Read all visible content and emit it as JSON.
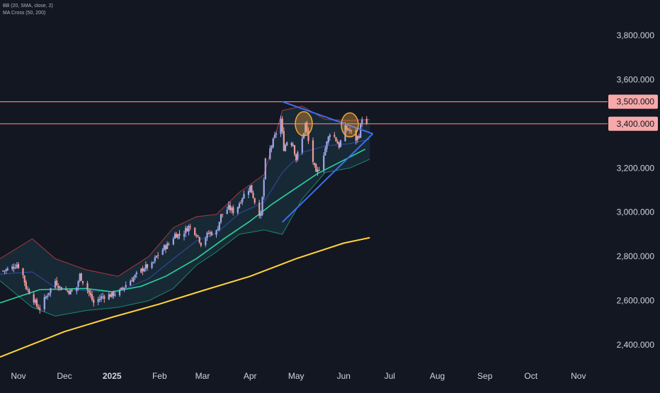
{
  "indicators": {
    "bb_label": "BB (20, SMA, close, 2)",
    "ma_cross_label": "MA Cross (50, 200)"
  },
  "colors": {
    "background": "#131722",
    "candle_up": "#9fa8ea",
    "candle_down": "#ef9a9a",
    "bb_upper": "#a43a3a",
    "bb_lower": "#17896a",
    "bb_basis": "#2c4fa8",
    "bb_fill": "#1a2d3a",
    "ma_50": "#29d39a",
    "ma_200": "#ffd43b",
    "horizontal_level": "#f77c80",
    "trendline": "#3d6df0",
    "circle_marker": "#f7a53a",
    "axis_text": "#d1d4dc",
    "price_tag_bg": "#f7a8a8",
    "price_tag_text": "#131722"
  },
  "chart_data": {
    "type": "candlestick",
    "title": "",
    "ylim": [
      2320,
      3960
    ],
    "xlim": [
      "2024-10-20",
      "2025-11-20"
    ],
    "y_ticks": [
      2400,
      2600,
      2800,
      3000,
      3200,
      3400,
      3500,
      3600,
      3800
    ],
    "y_tick_labels": [
      "2,400.000",
      "2,600.000",
      "2,800.000",
      "3,000.000",
      "3,200.000",
      "3,400.000",
      "3,500.000",
      "3,600.000",
      "3,800.000"
    ],
    "x_ticks": [
      {
        "date": "2024-11-01",
        "label": "Nov"
      },
      {
        "date": "2024-12-01",
        "label": "Dec"
      },
      {
        "date": "2025-01-01",
        "label": "2025"
      },
      {
        "date": "2025-02-01",
        "label": "Feb"
      },
      {
        "date": "2025-03-01",
        "label": "Mar"
      },
      {
        "date": "2025-04-01",
        "label": "Apr"
      },
      {
        "date": "2025-05-01",
        "label": "May"
      },
      {
        "date": "2025-06-01",
        "label": "Jun"
      },
      {
        "date": "2025-07-01",
        "label": "Jul"
      },
      {
        "date": "2025-08-01",
        "label": "Aug"
      },
      {
        "date": "2025-09-01",
        "label": "Sep"
      },
      {
        "date": "2025-10-01",
        "label": "Oct"
      },
      {
        "date": "2025-11-01",
        "label": "Nov"
      }
    ],
    "grid": false,
    "horizontal_levels": [
      {
        "value": 3500,
        "label": "3,500.000"
      },
      {
        "value": 3400,
        "label": "3,400.000"
      }
    ],
    "trendlines": [
      {
        "name": "upper",
        "points": [
          [
            "2025-04-22",
            3500
          ],
          [
            "2025-06-20",
            3355
          ]
        ]
      },
      {
        "name": "lower",
        "points": [
          [
            "2025-04-22",
            2955
          ],
          [
            "2025-06-20",
            3355
          ]
        ]
      }
    ],
    "circle_markers": [
      {
        "date": "2025-05-06",
        "price": 3400
      },
      {
        "date": "2025-06-05",
        "price": 3395
      }
    ],
    "close_series": [
      [
        "2024-10-22",
        2735
      ],
      [
        "2024-10-27",
        2745
      ],
      [
        "2024-10-31",
        2765
      ],
      [
        "2024-11-03",
        2740
      ],
      [
        "2024-11-06",
        2660
      ],
      [
        "2024-11-10",
        2620
      ],
      [
        "2024-11-13",
        2575
      ],
      [
        "2024-11-15",
        2565
      ],
      [
        "2024-11-20",
        2630
      ],
      [
        "2024-11-25",
        2690
      ],
      [
        "2024-11-28",
        2660
      ],
      [
        "2024-12-03",
        2645
      ],
      [
        "2024-12-08",
        2635
      ],
      [
        "2024-12-11",
        2715
      ],
      [
        "2024-12-16",
        2650
      ],
      [
        "2024-12-20",
        2590
      ],
      [
        "2024-12-26",
        2620
      ],
      [
        "2024-12-31",
        2625
      ],
      [
        "2025-01-06",
        2640
      ],
      [
        "2025-01-11",
        2680
      ],
      [
        "2025-01-16",
        2710
      ],
      [
        "2025-01-22",
        2750
      ],
      [
        "2025-01-27",
        2760
      ],
      [
        "2025-01-30",
        2800
      ],
      [
        "2025-02-04",
        2840
      ],
      [
        "2025-02-08",
        2860
      ],
      [
        "2025-02-11",
        2900
      ],
      [
        "2025-02-15",
        2895
      ],
      [
        "2025-02-20",
        2935
      ],
      [
        "2025-02-25",
        2905
      ],
      [
        "2025-02-28",
        2860
      ],
      [
        "2025-03-05",
        2905
      ],
      [
        "2025-03-10",
        2910
      ],
      [
        "2025-03-13",
        2985
      ],
      [
        "2025-03-18",
        3020
      ],
      [
        "2025-03-22",
        3000
      ],
      [
        "2025-03-27",
        3070
      ],
      [
        "2025-04-01",
        3115
      ],
      [
        "2025-04-04",
        3050
      ],
      [
        "2025-04-08",
        2980
      ],
      [
        "2025-04-11",
        3230
      ],
      [
        "2025-04-16",
        3320
      ],
      [
        "2025-04-21",
        3420
      ],
      [
        "2025-04-23",
        3290
      ],
      [
        "2025-04-25",
        3320
      ],
      [
        "2025-04-29",
        3310
      ],
      [
        "2025-05-01",
        3240
      ],
      [
        "2025-05-05",
        3330
      ],
      [
        "2025-05-07",
        3400
      ],
      [
        "2025-05-09",
        3320
      ],
      [
        "2025-05-12",
        3230
      ],
      [
        "2025-05-14",
        3170
      ],
      [
        "2025-05-16",
        3200
      ],
      [
        "2025-05-20",
        3290
      ],
      [
        "2025-05-23",
        3360
      ],
      [
        "2025-05-26",
        3340
      ],
      [
        "2025-05-29",
        3300
      ],
      [
        "2025-06-02",
        3380
      ],
      [
        "2025-06-05",
        3370
      ],
      [
        "2025-06-09",
        3330
      ],
      [
        "2025-06-11",
        3350
      ],
      [
        "2025-06-13",
        3430
      ],
      [
        "2025-06-16",
        3390
      ]
    ],
    "series": [
      {
        "name": "MA 50",
        "color": "#29d39a"
      },
      {
        "name": "MA 200",
        "color": "#ffd43b"
      }
    ],
    "ma_50": [
      [
        "2024-10-20",
        2590
      ],
      [
        "2024-11-15",
        2650
      ],
      [
        "2024-12-15",
        2655
      ],
      [
        "2025-01-01",
        2640
      ],
      [
        "2025-01-20",
        2665
      ],
      [
        "2025-02-05",
        2710
      ],
      [
        "2025-02-25",
        2790
      ],
      [
        "2025-03-15",
        2880
      ],
      [
        "2025-04-01",
        2960
      ],
      [
        "2025-04-15",
        3035
      ],
      [
        "2025-05-01",
        3110
      ],
      [
        "2025-05-15",
        3175
      ],
      [
        "2025-06-01",
        3235
      ],
      [
        "2025-06-15",
        3285
      ]
    ],
    "ma_200": [
      [
        "2024-10-20",
        2345
      ],
      [
        "2024-12-01",
        2460
      ],
      [
        "2025-01-01",
        2525
      ],
      [
        "2025-02-01",
        2585
      ],
      [
        "2025-03-01",
        2645
      ],
      [
        "2025-04-01",
        2710
      ],
      [
        "2025-05-01",
        2790
      ],
      [
        "2025-06-01",
        2860
      ],
      [
        "2025-06-18",
        2885
      ]
    ],
    "bb_upper": [
      [
        "2024-10-20",
        2790
      ],
      [
        "2024-11-10",
        2880
      ],
      [
        "2024-11-25",
        2790
      ],
      [
        "2024-12-15",
        2740
      ],
      [
        "2025-01-05",
        2710
      ],
      [
        "2025-01-25",
        2800
      ],
      [
        "2025-02-10",
        2930
      ],
      [
        "2025-02-25",
        2980
      ],
      [
        "2025-03-10",
        2990
      ],
      [
        "2025-03-25",
        3090
      ],
      [
        "2025-04-10",
        3170
      ],
      [
        "2025-04-22",
        3460
      ],
      [
        "2025-05-05",
        3480
      ],
      [
        "2025-05-20",
        3420
      ],
      [
        "2025-06-05",
        3415
      ],
      [
        "2025-06-18",
        3420
      ]
    ],
    "bb_lower": [
      [
        "2024-10-20",
        2690
      ],
      [
        "2024-11-10",
        2570
      ],
      [
        "2024-11-25",
        2530
      ],
      [
        "2024-12-15",
        2555
      ],
      [
        "2025-01-05",
        2570
      ],
      [
        "2025-01-25",
        2600
      ],
      [
        "2025-02-10",
        2655
      ],
      [
        "2025-02-25",
        2760
      ],
      [
        "2025-03-10",
        2820
      ],
      [
        "2025-03-25",
        2900
      ],
      [
        "2025-04-10",
        2920
      ],
      [
        "2025-04-22",
        2900
      ],
      [
        "2025-05-05",
        3060
      ],
      [
        "2025-05-20",
        3180
      ],
      [
        "2025-06-05",
        3200
      ],
      [
        "2025-06-18",
        3240
      ]
    ],
    "bb_basis": [
      [
        "2024-10-20",
        2720
      ],
      [
        "2024-11-10",
        2730
      ],
      [
        "2024-11-25",
        2660
      ],
      [
        "2024-12-15",
        2645
      ],
      [
        "2025-01-05",
        2640
      ],
      [
        "2025-01-25",
        2700
      ],
      [
        "2025-02-10",
        2790
      ],
      [
        "2025-02-25",
        2870
      ],
      [
        "2025-03-10",
        2905
      ],
      [
        "2025-03-25",
        2995
      ],
      [
        "2025-04-10",
        3045
      ],
      [
        "2025-04-22",
        3180
      ],
      [
        "2025-05-05",
        3270
      ],
      [
        "2025-05-20",
        3300
      ],
      [
        "2025-06-05",
        3310
      ],
      [
        "2025-06-18",
        3330
      ]
    ]
  }
}
